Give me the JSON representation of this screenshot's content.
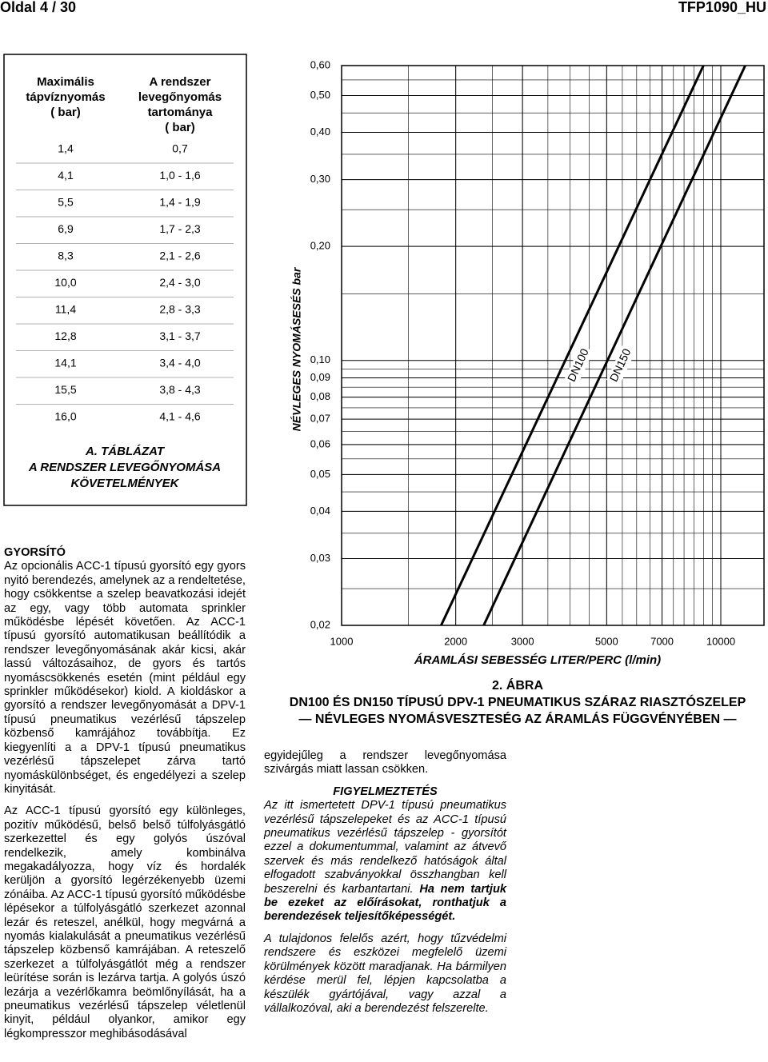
{
  "header": {
    "page": "Oldal 4 / 30",
    "doc": "TFP1090_HU"
  },
  "table": {
    "headers": [
      [
        "Maximális",
        "tápvíznyomás",
        "( bar)"
      ],
      [
        "A rendszer",
        "levegőnyomás",
        "tartománya",
        "( bar)"
      ]
    ],
    "rows": [
      [
        "1,4",
        "0,7"
      ],
      [
        "4,1",
        "1,0 - 1,6"
      ],
      [
        "5,5",
        "1,4 - 1,9"
      ],
      [
        "6,9",
        "1,7 - 2,3"
      ],
      [
        "8,3",
        "2,1 - 2,6"
      ],
      [
        "10,0",
        "2,4 - 3,0"
      ],
      [
        "11,4",
        "2,8 - 3,3"
      ],
      [
        "12,8",
        "3,1 - 3,7"
      ],
      [
        "14,1",
        "3,4 - 4,0"
      ],
      [
        "15,5",
        "3,8 - 4,3"
      ],
      [
        "16,0",
        "4,1 - 4,6"
      ]
    ],
    "caption": [
      "A. TÁBLÁZAT",
      "A RENDSZER LEVEGŐNYOMÁSA",
      "KÖVETELMÉNYEK"
    ]
  },
  "chart_data": {
    "type": "line",
    "title_lines": [
      "2. ÁBRA",
      "DN100 ÉS DN150 TÍPUSÚ DPV-1 PNEUMATIKUS SZÁRAZ RIASZTÓSZELEP",
      "— NÉVLEGES NYOMÁSVESZTESÉG AZ ÁRAMLÁS FÜGGVÉNYÉBEN —"
    ],
    "x_label": "ÁRAMLÁSI SEBESSÉG LITER/PERC (l/min)",
    "y_label": "NÉVLEGES NYOMÁSESÉS bar",
    "xscale": "log",
    "yscale": "log",
    "grid": true,
    "xlim": [
      1000,
      13000
    ],
    "ylim": [
      0.02,
      0.6
    ],
    "xticks": [
      1000,
      2000,
      3000,
      5000,
      7000,
      10000
    ],
    "yticks": [
      {
        "value": 0.6,
        "label": "0,60"
      },
      {
        "value": 0.5,
        "label": "0,50"
      },
      {
        "value": 0.4,
        "label": "0,40"
      },
      {
        "value": 0.3,
        "label": "0,30"
      },
      {
        "value": 0.2,
        "label": "0,20"
      },
      {
        "value": 0.1,
        "label": "0,10"
      },
      {
        "value": 0.09,
        "label": "0,09"
      },
      {
        "value": 0.08,
        "label": "0,08"
      },
      {
        "value": 0.07,
        "label": "0,07"
      },
      {
        "value": 0.06,
        "label": "0,06"
      },
      {
        "value": 0.05,
        "label": "0,05"
      },
      {
        "value": 0.04,
        "label": "0,04"
      },
      {
        "value": 0.03,
        "label": "0,03"
      },
      {
        "value": 0.02,
        "label": "0,02"
      }
    ],
    "series": [
      {
        "name": "DN100",
        "color": "#000000",
        "x": [
          1830,
          9000
        ],
        "values": [
          0.02,
          0.6
        ]
      },
      {
        "name": "DN150",
        "color": "#000000",
        "x": [
          2370,
          11600
        ],
        "values": [
          0.02,
          0.6
        ]
      }
    ]
  },
  "text": {
    "heading": "GYORSÍTÓ",
    "para1": "Az opcionális ACC-1 típusú gyorsító egy gyors nyitó berendezés, amelynek az a rendeltetése, hogy csökkentse a szelep beavatkozási idejét az egy, vagy több automata sprinkler működésbe lépését követően. Az ACC-1 típusú gyorsító automatikusan beállítódik a rendszer levegőnyomásának akár kicsi, akár lassú változásaihoz, de gyors és tartós nyomáscsökkenés esetén (mint például egy sprinkler működésekor) kiold. A kioldáskor a gyorsító a rendszer levegőnyomását a DPV-1 típusú pneumatikus vezérlésű tápszelep közbenső kamrájához továbbítja. Ez kiegyenlíti a a DPV-1 típusú pneumatikus vezérlésű tápszelepet zárva tartó nyomáskülönbséget, és engedélyezi a szelep kinyitását.",
    "para2": "Az ACC-1 típusú gyorsító egy különleges, pozitív működésű, belső belső túlfolyásgátló szerkezettel és egy golyós úszóval rendelkezik, amely kombinálva megakadályozza, hogy víz és hordalék kerüljön a gyorsító legérzékenyebb üzemi zónáiba. Az ACC-1 típusú gyorsító működésbe lépésekor a túlfolyásgátló szerkezet azonnal lezár és reteszel, anélkül, hogy megvárná a nyomás kialakulását a pneumatikus vezérlésű tápszelep közbenső kamrájában. A reteszelő szerkezet a túlfolyásgátlót még a rendszer leürítése során is lezárva tartja. A golyós úszó lezárja a vezérlőkamra beömlőnyílását, ha a pneumatikus vezérlésű tápszelep véletlenül kinyit, például olyankor, amikor egy légkompresszor meghibásodásával",
    "para3": "egyidejűleg a rendszer levegőnyomása szivárgás miatt lassan csökken.",
    "warning_heading": "FIGYELMEZTETÉS",
    "warning": "Az itt ismertetett DPV-1 típusú pneumatikus vezérlésű tápszelepeket és az ACC-1 típusú pneumatikus vezérlésű tápszelep - gyorsítót ezzel a dokumentummal, valamint az átvevő szervek és más rendelkező hatóságok által elfogadott szabványokkal összhangban kell beszerelni és karbantartani.",
    "warning_bold": "Ha nem tartjuk be ezeket az előírásokat, ronthatjuk a berendezések teljesítőképességét.",
    "owner": "A tulajdonos felelős azért, hogy tűzvédelmi rendszere és eszközei megfelelő üzemi körülmények között maradjanak. Ha bármilyen kérdése merül fel, lépjen kapcsolatba a készülék gyártójával, vagy azzal a vállalkozóval, aki a berendezést felszerelte."
  }
}
